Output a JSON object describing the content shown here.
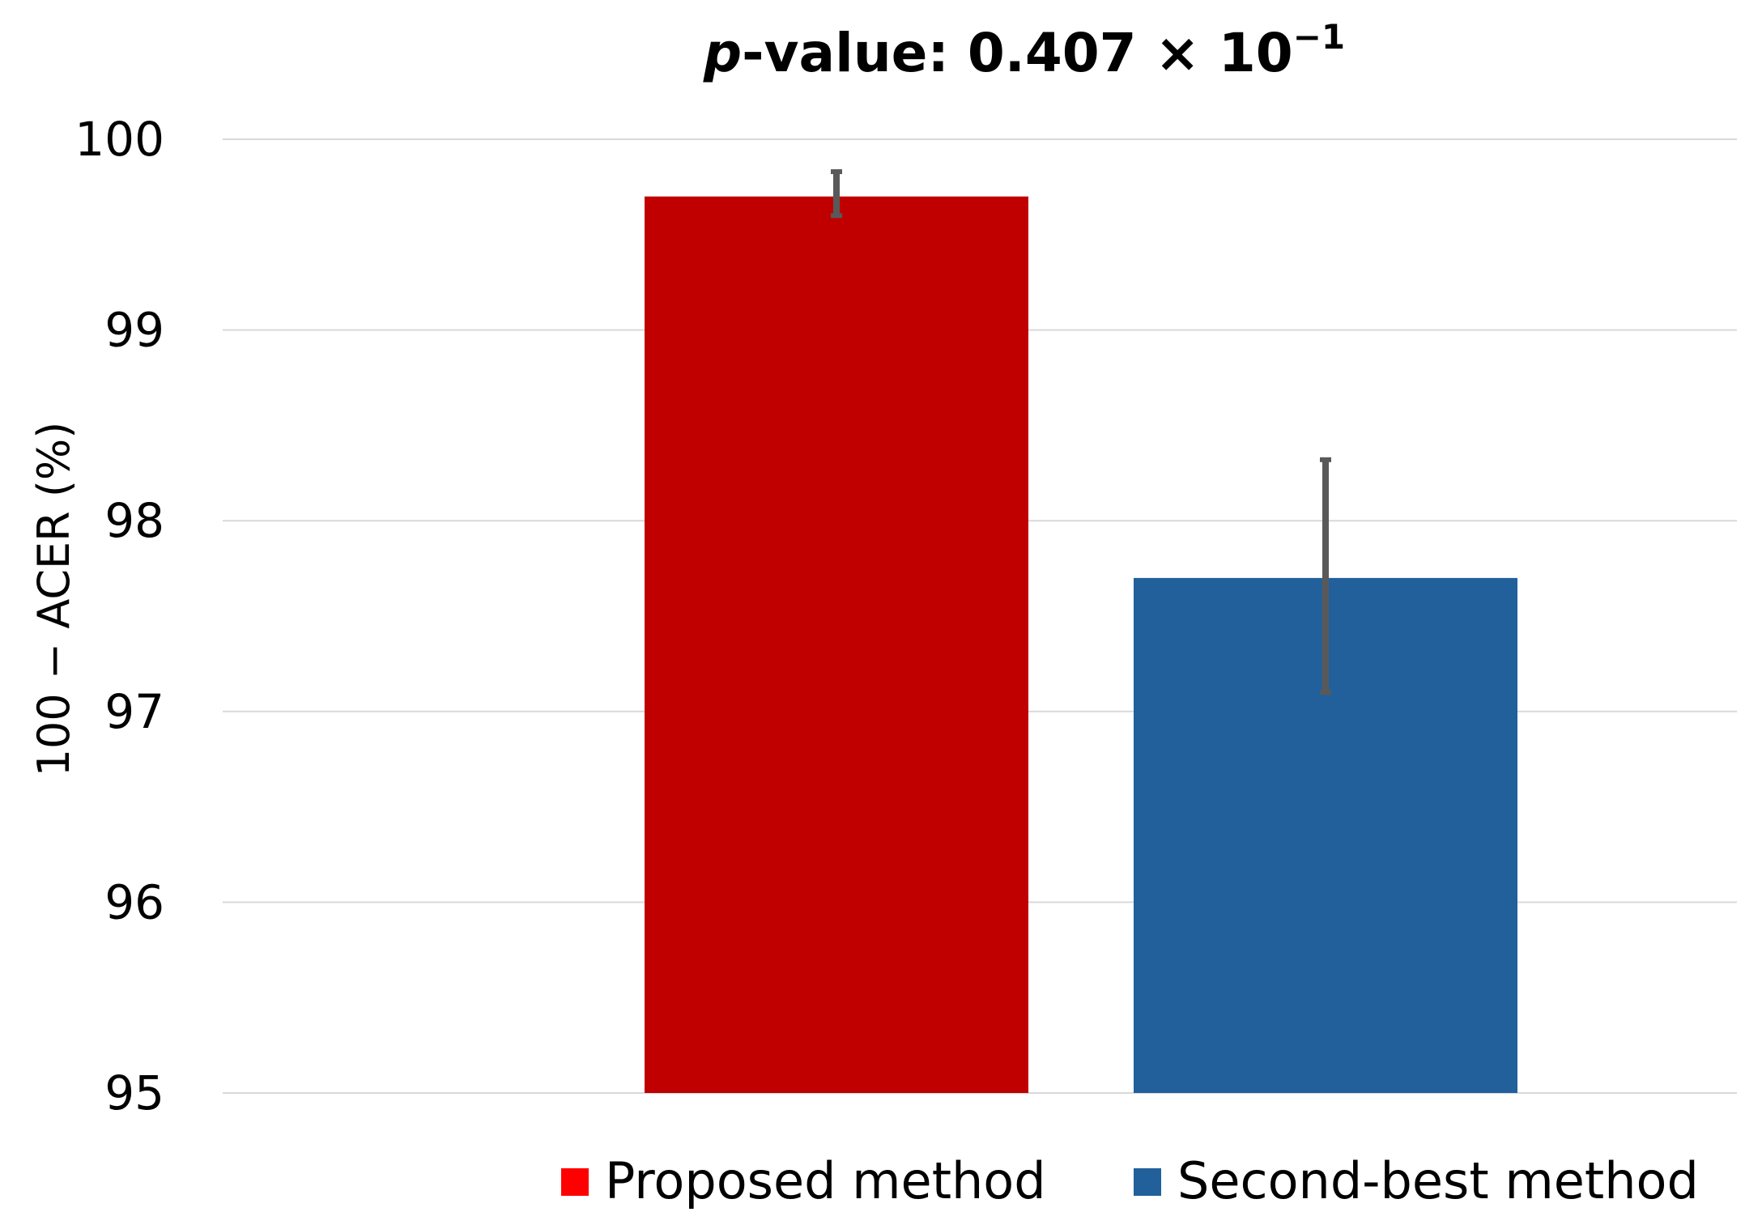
{
  "chart_data": {
    "type": "bar",
    "title": {
      "italic_part": "p",
      "rest": "-value: 0.407 × 10",
      "superscript": "−1"
    },
    "ylabel": "100 − ACER (%)",
    "xlabel": "",
    "ylim": [
      95,
      100
    ],
    "yticks": [
      95,
      96,
      97,
      98,
      99,
      100
    ],
    "grid": true,
    "legend_position": "bottom",
    "series": [
      {
        "name": "Proposed method",
        "value": 99.7,
        "error_low": 99.6,
        "error_high": 99.83,
        "color": "#c00000",
        "legend_color": "#ff0000"
      },
      {
        "name": "Second-best method",
        "value": 97.7,
        "error_low": 97.1,
        "error_high": 98.32,
        "color": "#22609c",
        "legend_color": "#22609c"
      }
    ]
  }
}
